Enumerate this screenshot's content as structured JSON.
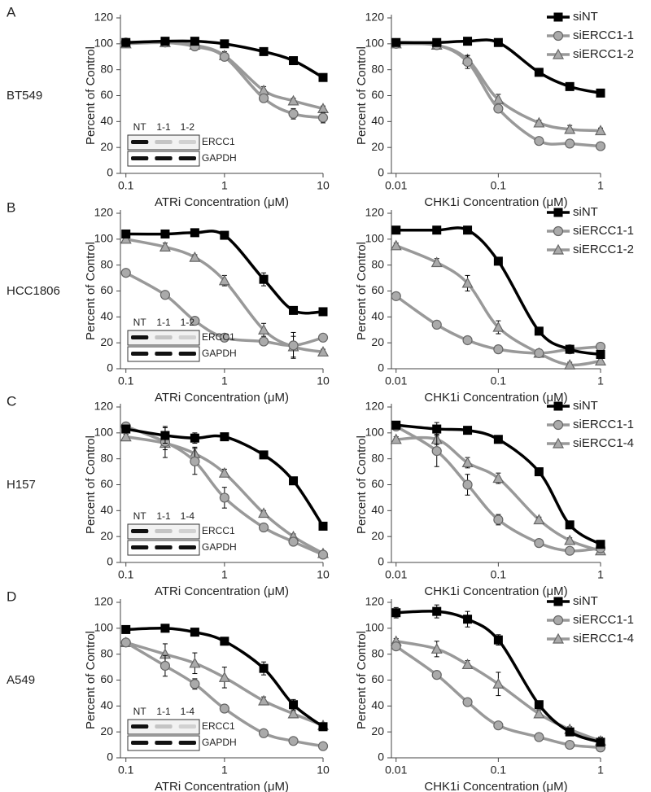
{
  "chart_data": [
    {
      "type": "line",
      "panel": "A",
      "cell_line": "BT549",
      "xlabel": "ATRi Concentration (μM)",
      "ylabel": "Percent of Control",
      "log_x": true,
      "xlim": [
        0.088,
        10
      ],
      "xticks": [
        0.1,
        1,
        10
      ],
      "ylim": [
        0,
        120
      ],
      "yticks": [
        0,
        20,
        40,
        60,
        80,
        100,
        120
      ],
      "x": [
        0.1,
        0.25,
        0.5,
        1,
        2.5,
        5,
        10
      ],
      "series": [
        {
          "color": "#000000",
          "marker": "square",
          "values": [
            101,
            102,
            102,
            100,
            94,
            87,
            74
          ],
          "errors": [
            1,
            1,
            1,
            1,
            2,
            2,
            3
          ]
        },
        {
          "color": "#999999",
          "marker": "circle",
          "values": [
            101,
            101,
            98,
            90,
            58,
            46,
            43
          ],
          "errors": [
            2,
            1,
            2,
            3,
            3,
            4,
            4
          ]
        },
        {
          "color": "#999999",
          "marker": "triangle",
          "values": [
            100,
            101,
            99,
            91,
            64,
            56,
            50
          ],
          "errors": [
            2,
            1,
            2,
            3,
            3,
            2,
            2
          ]
        }
      ],
      "inset": {
        "lanes": [
          "NT",
          "1-1",
          "1-2"
        ],
        "proteins": [
          "ERCC1",
          "GAPDH"
        ]
      }
    },
    {
      "type": "line",
      "xlabel": "CHK1i Concentration (μM)",
      "ylabel": "Percent of Control",
      "log_x": true,
      "xlim": [
        0.009,
        1
      ],
      "xticks": [
        0.01,
        0.1,
        1
      ],
      "ylim": [
        0,
        120
      ],
      "yticks": [
        0,
        20,
        40,
        60,
        80,
        100,
        120
      ],
      "x": [
        0.01,
        0.025,
        0.05,
        0.1,
        0.25,
        0.5,
        1
      ],
      "legend": "right",
      "series": [
        {
          "name": "siNT",
          "color": "#000000",
          "marker": "square",
          "values": [
            101,
            101,
            102,
            101,
            78,
            67,
            62
          ],
          "errors": [
            1,
            1,
            1,
            1,
            2,
            2,
            2
          ]
        },
        {
          "name": "siERCC1-1",
          "color": "#999999",
          "marker": "circle",
          "values": [
            100,
            99,
            86,
            50,
            25,
            23,
            21
          ],
          "errors": [
            2,
            2,
            5,
            3,
            2,
            2,
            2
          ]
        },
        {
          "name": "siERCC1-2",
          "color": "#999999",
          "marker": "triangle",
          "values": [
            100,
            99,
            88,
            57,
            39,
            34,
            33
          ],
          "errors": [
            2,
            2,
            3,
            4,
            2,
            3,
            2
          ]
        }
      ]
    },
    {
      "type": "line",
      "panel": "B",
      "cell_line": "HCC1806",
      "xlabel": "ATRi Concentration (μM)",
      "ylabel": "Percent of Control",
      "log_x": true,
      "xlim": [
        0.088,
        10
      ],
      "xticks": [
        0.1,
        1,
        10
      ],
      "ylim": [
        0,
        120
      ],
      "yticks": [
        0,
        20,
        40,
        60,
        80,
        100,
        120
      ],
      "x": [
        0.1,
        0.25,
        0.5,
        1,
        2.5,
        5,
        10
      ],
      "series": [
        {
          "color": "#000000",
          "marker": "square",
          "values": [
            104,
            104,
            105,
            103,
            69,
            45,
            44
          ],
          "errors": [
            1,
            1,
            1,
            1,
            5,
            2,
            2
          ]
        },
        {
          "color": "#999999",
          "marker": "circle",
          "values": [
            74,
            57,
            37,
            24,
            21,
            18,
            24
          ],
          "errors": [
            2,
            2,
            2,
            2,
            2,
            10,
            2
          ]
        },
        {
          "color": "#999999",
          "marker": "triangle",
          "values": [
            100,
            94,
            86,
            68,
            30,
            17,
            13
          ],
          "errors": [
            2,
            3,
            2,
            4,
            5,
            8,
            2
          ]
        }
      ],
      "inset": {
        "lanes": [
          "NT",
          "1-1",
          "1-2"
        ],
        "proteins": [
          "ERCC1",
          "GAPDH"
        ]
      }
    },
    {
      "type": "line",
      "xlabel": "CHK1i Concentration (μM)",
      "ylabel": "Percent of Control",
      "log_x": true,
      "xlim": [
        0.009,
        1
      ],
      "xticks": [
        0.01,
        0.1,
        1
      ],
      "ylim": [
        0,
        120
      ],
      "yticks": [
        0,
        20,
        40,
        60,
        80,
        100,
        120
      ],
      "x": [
        0.01,
        0.025,
        0.05,
        0.1,
        0.25,
        0.5,
        1
      ],
      "legend": "right",
      "series": [
        {
          "name": "siNT",
          "color": "#000000",
          "marker": "square",
          "values": [
            107,
            107,
            107,
            83,
            29,
            15,
            11
          ],
          "errors": [
            1,
            1,
            1,
            2,
            2,
            2,
            2
          ]
        },
        {
          "name": "siERCC1-1",
          "color": "#999999",
          "marker": "circle",
          "values": [
            56,
            34,
            22,
            15,
            12,
            15,
            17
          ],
          "errors": [
            2,
            3,
            2,
            2,
            2,
            2,
            2
          ]
        },
        {
          "name": "siERCC1-2",
          "color": "#999999",
          "marker": "triangle",
          "values": [
            95,
            82,
            66,
            32,
            12,
            3,
            6
          ],
          "errors": [
            2,
            3,
            6,
            5,
            2,
            2,
            3
          ]
        }
      ]
    },
    {
      "type": "line",
      "panel": "C",
      "cell_line": "H157",
      "xlabel": "ATRi Concentration (μM)",
      "ylabel": "Percent of Control",
      "log_x": true,
      "xlim": [
        0.088,
        10
      ],
      "xticks": [
        0.1,
        1,
        10
      ],
      "ylim": [
        0,
        120
      ],
      "yticks": [
        0,
        20,
        40,
        60,
        80,
        100,
        120
      ],
      "x": [
        0.1,
        0.25,
        0.5,
        1,
        2.5,
        5,
        10
      ],
      "series": [
        {
          "color": "#000000",
          "marker": "square",
          "values": [
            103,
            98,
            96,
            97,
            83,
            63,
            28
          ],
          "errors": [
            2,
            6,
            4,
            2,
            2,
            2,
            2
          ]
        },
        {
          "color": "#999999",
          "marker": "circle",
          "values": [
            105,
            93,
            78,
            50,
            27,
            16,
            6
          ],
          "errors": [
            2,
            12,
            10,
            8,
            2,
            2,
            2
          ]
        },
        {
          "color": "#999999",
          "marker": "triangle",
          "values": [
            97,
            92,
            84,
            69,
            38,
            20,
            7
          ],
          "errors": [
            2,
            5,
            5,
            3,
            2,
            2,
            2
          ]
        }
      ],
      "inset": {
        "lanes": [
          "NT",
          "1-1",
          "1-4"
        ],
        "proteins": [
          "ERCC1",
          "GAPDH"
        ]
      }
    },
    {
      "type": "line",
      "xlabel": "CHK1i Concentration (μM)",
      "ylabel": "Percent of Control",
      "log_x": true,
      "xlim": [
        0.009,
        1
      ],
      "xticks": [
        0.01,
        0.1,
        1
      ],
      "ylim": [
        0,
        120
      ],
      "yticks": [
        0,
        20,
        40,
        60,
        80,
        100,
        120
      ],
      "x": [
        0.01,
        0.025,
        0.05,
        0.1,
        0.25,
        0.5,
        1
      ],
      "legend": "right",
      "series": [
        {
          "name": "siNT",
          "color": "#000000",
          "marker": "square",
          "values": [
            106,
            103,
            102,
            95,
            70,
            29,
            14
          ],
          "errors": [
            2,
            5,
            2,
            2,
            2,
            2,
            2
          ]
        },
        {
          "name": "siERCC1-1",
          "color": "#999999",
          "marker": "circle",
          "values": [
            105,
            86,
            60,
            33,
            15,
            9,
            11
          ],
          "errors": [
            2,
            12,
            8,
            4,
            2,
            2,
            2
          ]
        },
        {
          "name": "siERCC1-4",
          "color": "#999999",
          "marker": "triangle",
          "values": [
            95,
            95,
            77,
            65,
            33,
            17,
            9
          ],
          "errors": [
            2,
            4,
            4,
            4,
            2,
            2,
            2
          ]
        }
      ]
    },
    {
      "type": "line",
      "panel": "D",
      "cell_line": "A549",
      "xlabel": "ATRi Concentration (μM)",
      "ylabel": "Percent of Control",
      "log_x": true,
      "xlim": [
        0.088,
        10
      ],
      "xticks": [
        0.1,
        1,
        10
      ],
      "ylim": [
        0,
        120
      ],
      "yticks": [
        0,
        20,
        40,
        60,
        80,
        100,
        120
      ],
      "x": [
        0.1,
        0.25,
        0.5,
        1,
        2.5,
        5,
        10
      ],
      "series": [
        {
          "color": "#000000",
          "marker": "square",
          "values": [
            99,
            100,
            97,
            90,
            69,
            41,
            24
          ],
          "errors": [
            2,
            2,
            2,
            2,
            5,
            4,
            3
          ]
        },
        {
          "color": "#999999",
          "marker": "circle",
          "values": [
            89,
            71,
            57,
            38,
            19,
            13,
            9
          ],
          "errors": [
            2,
            8,
            4,
            3,
            2,
            2,
            2
          ]
        },
        {
          "color": "#999999",
          "marker": "triangle",
          "values": [
            89,
            80,
            73,
            62,
            44,
            34,
            25
          ],
          "errors": [
            2,
            8,
            8,
            8,
            3,
            2,
            2
          ]
        }
      ],
      "inset": {
        "lanes": [
          "NT",
          "1-1",
          "1-4"
        ],
        "proteins": [
          "ERCC1",
          "GAPDH"
        ]
      }
    },
    {
      "type": "line",
      "xlabel": "CHK1i Concentration (μM)",
      "ylabel": "Percent of Control",
      "log_x": true,
      "xlim": [
        0.009,
        1
      ],
      "xticks": [
        0.01,
        0.1,
        1
      ],
      "ylim": [
        0,
        120
      ],
      "yticks": [
        0,
        20,
        40,
        60,
        80,
        100,
        120
      ],
      "x": [
        0.01,
        0.025,
        0.05,
        0.1,
        0.25,
        0.5,
        1
      ],
      "legend": "right",
      "series": [
        {
          "name": "siNT",
          "color": "#000000",
          "marker": "square",
          "values": [
            112,
            113,
            107,
            91,
            41,
            20,
            12
          ],
          "errors": [
            4,
            5,
            6,
            4,
            2,
            2,
            2
          ]
        },
        {
          "name": "siERCC1-1",
          "color": "#999999",
          "marker": "circle",
          "values": [
            86,
            64,
            43,
            25,
            16,
            10,
            8
          ],
          "errors": [
            2,
            2,
            2,
            2,
            2,
            2,
            2
          ]
        },
        {
          "name": "siERCC1-4",
          "color": "#999999",
          "marker": "triangle",
          "values": [
            90,
            84,
            72,
            57,
            34,
            22,
            13
          ],
          "errors": [
            2,
            6,
            3,
            9,
            3,
            2,
            3
          ]
        }
      ]
    }
  ]
}
